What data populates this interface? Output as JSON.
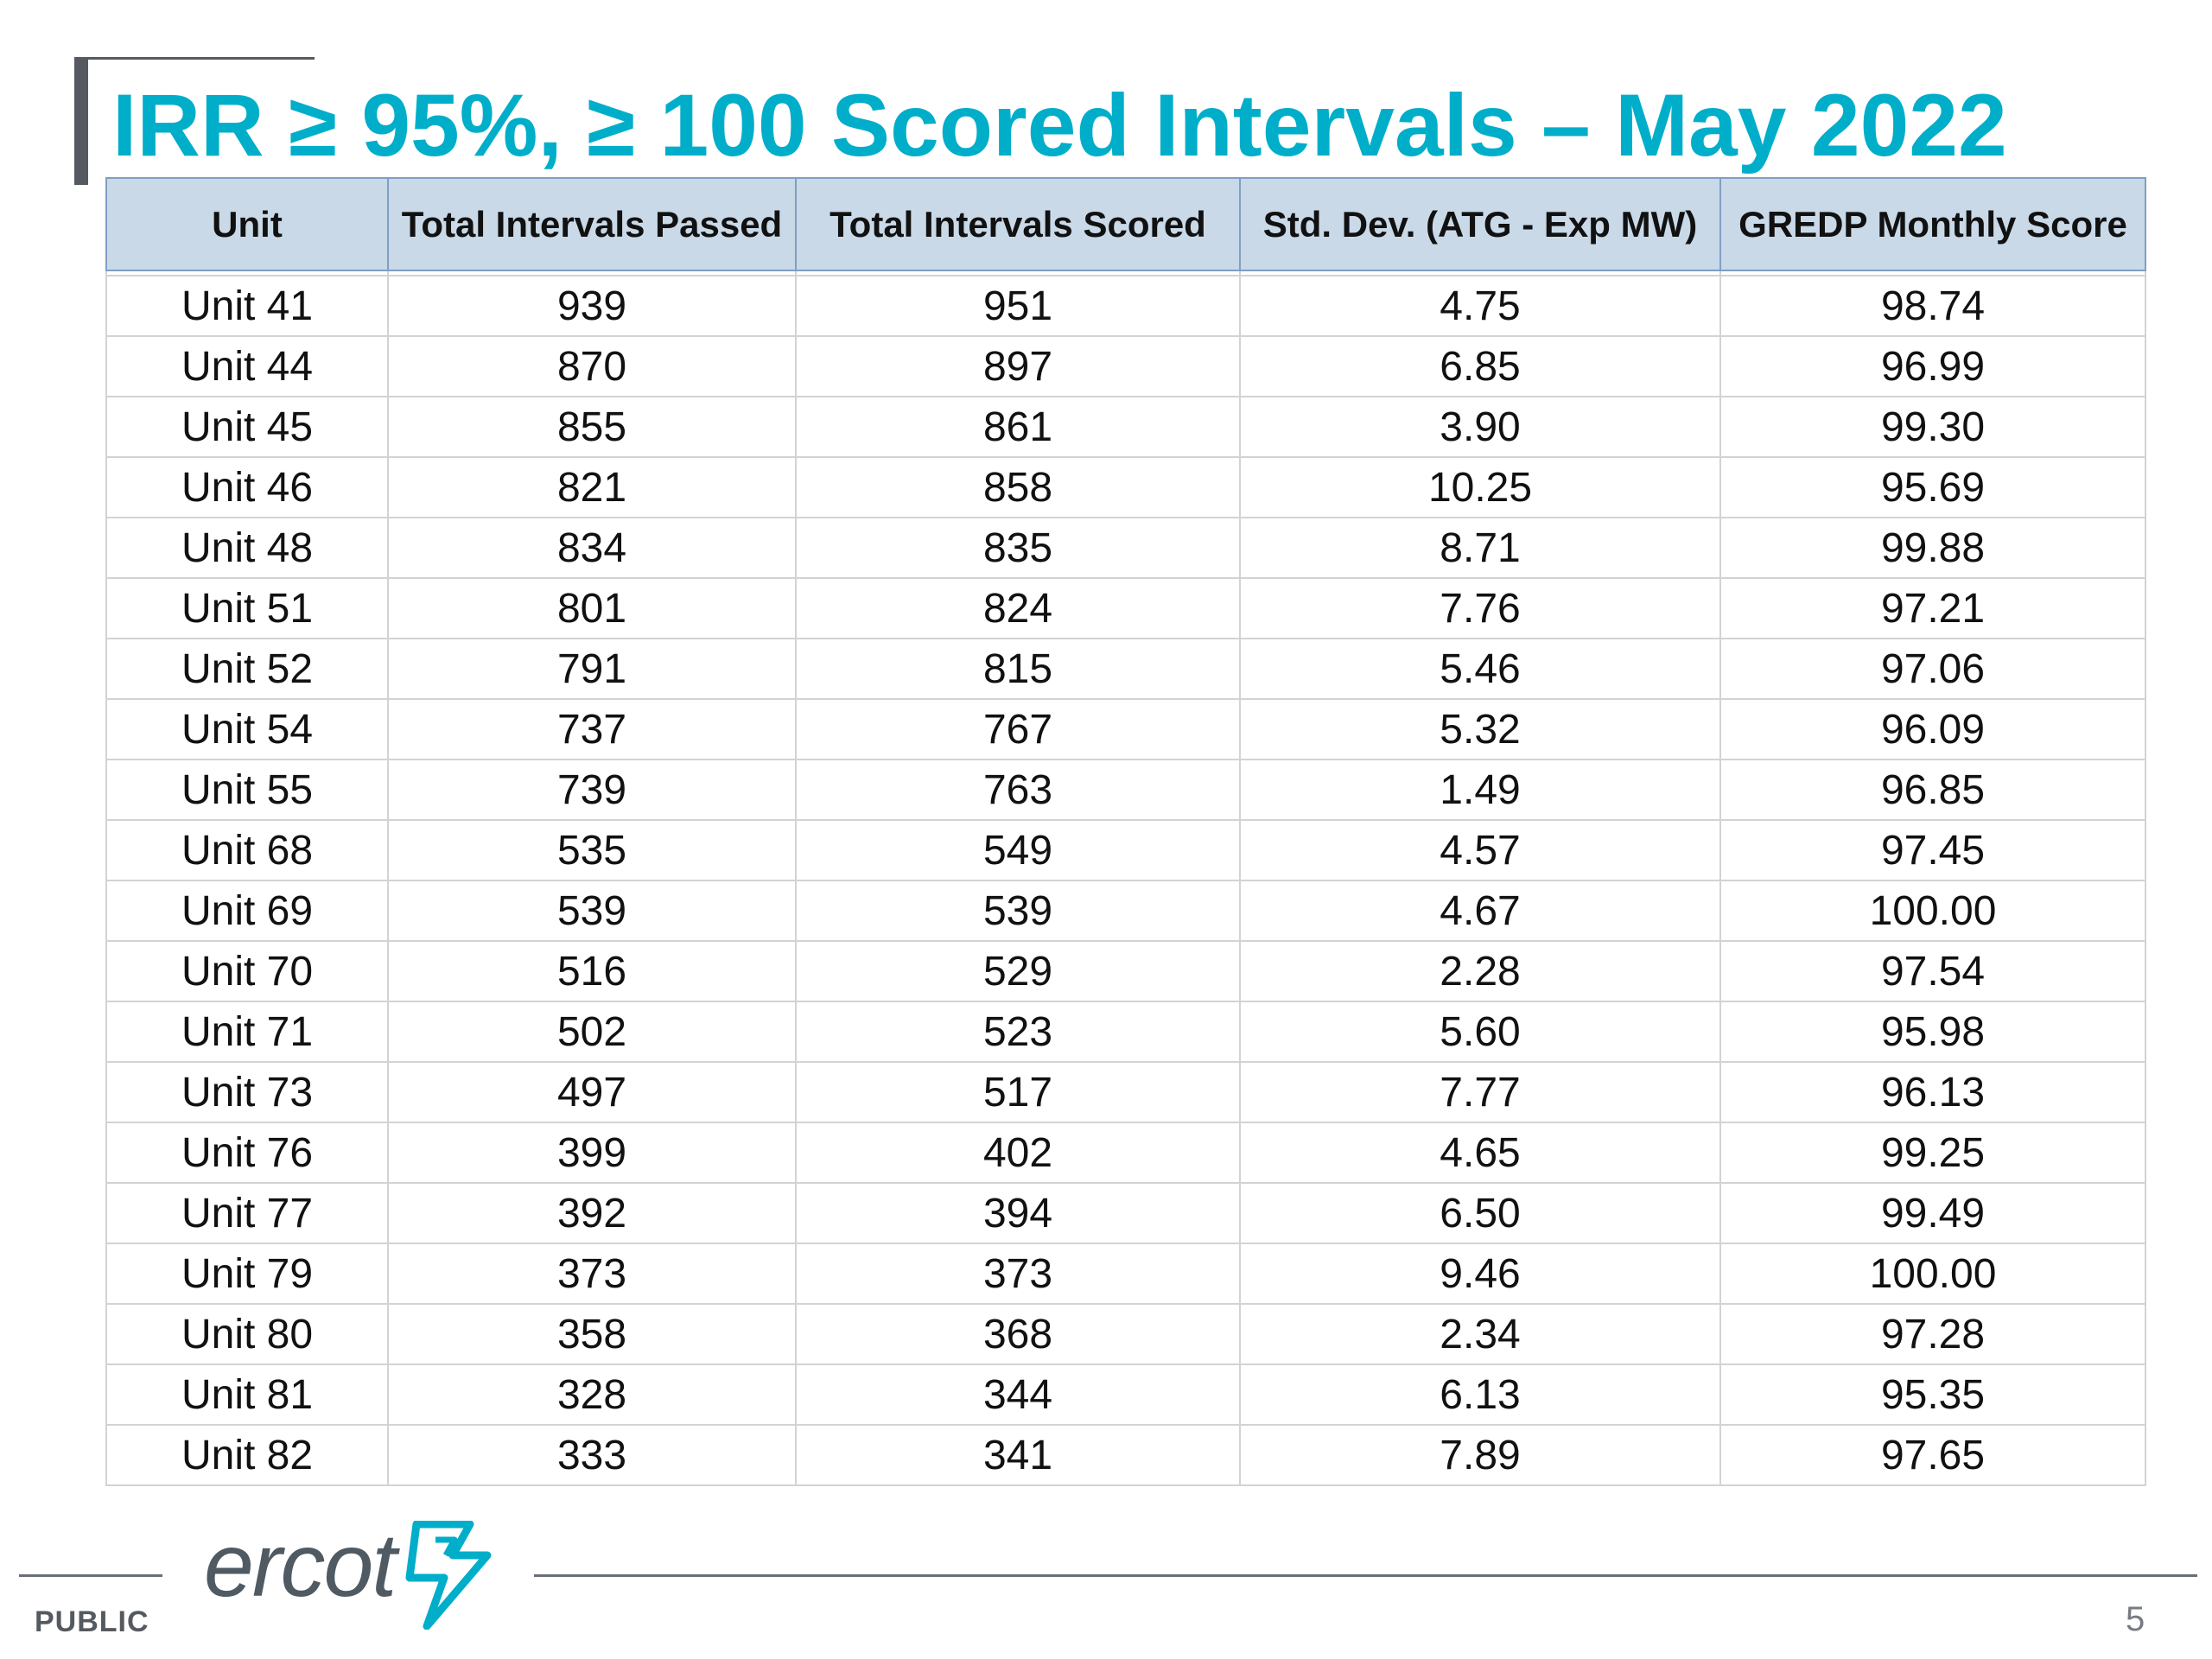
{
  "slide": {
    "title": "IRR ≥ 95%, ≥ 100 Scored Intervals – May 2022",
    "page_number": "5",
    "classification": "PUBLIC",
    "logo_text": "ercot"
  },
  "colors": {
    "title": "#00aeca",
    "header_bg": "#c9d9e8",
    "header_border": "#7f9fc4",
    "grid": "#d3d3d3",
    "logo": "#4f5a63",
    "logo_bolt": "#00aeca"
  },
  "table": {
    "columns": [
      "Unit",
      "Total Intervals Passed",
      "Total Intervals Scored",
      "Std. Dev. (ATG - Exp MW)",
      "GREDP Monthly Score"
    ],
    "rows": [
      [
        "Unit 41",
        "939",
        "951",
        "4.75",
        "98.74"
      ],
      [
        "Unit 44",
        "870",
        "897",
        "6.85",
        "96.99"
      ],
      [
        "Unit 45",
        "855",
        "861",
        "3.90",
        "99.30"
      ],
      [
        "Unit 46",
        "821",
        "858",
        "10.25",
        "95.69"
      ],
      [
        "Unit 48",
        "834",
        "835",
        "8.71",
        "99.88"
      ],
      [
        "Unit 51",
        "801",
        "824",
        "7.76",
        "97.21"
      ],
      [
        "Unit 52",
        "791",
        "815",
        "5.46",
        "97.06"
      ],
      [
        "Unit 54",
        "737",
        "767",
        "5.32",
        "96.09"
      ],
      [
        "Unit 55",
        "739",
        "763",
        "1.49",
        "96.85"
      ],
      [
        "Unit 68",
        "535",
        "549",
        "4.57",
        "97.45"
      ],
      [
        "Unit 69",
        "539",
        "539",
        "4.67",
        "100.00"
      ],
      [
        "Unit 70",
        "516",
        "529",
        "2.28",
        "97.54"
      ],
      [
        "Unit 71",
        "502",
        "523",
        "5.60",
        "95.98"
      ],
      [
        "Unit 73",
        "497",
        "517",
        "7.77",
        "96.13"
      ],
      [
        "Unit 76",
        "399",
        "402",
        "4.65",
        "99.25"
      ],
      [
        "Unit 77",
        "392",
        "394",
        "6.50",
        "99.49"
      ],
      [
        "Unit 79",
        "373",
        "373",
        "9.46",
        "100.00"
      ],
      [
        "Unit 80",
        "358",
        "368",
        "2.34",
        "97.28"
      ],
      [
        "Unit 81",
        "328",
        "344",
        "6.13",
        "95.35"
      ],
      [
        "Unit 82",
        "333",
        "341",
        "7.89",
        "97.65"
      ]
    ]
  }
}
